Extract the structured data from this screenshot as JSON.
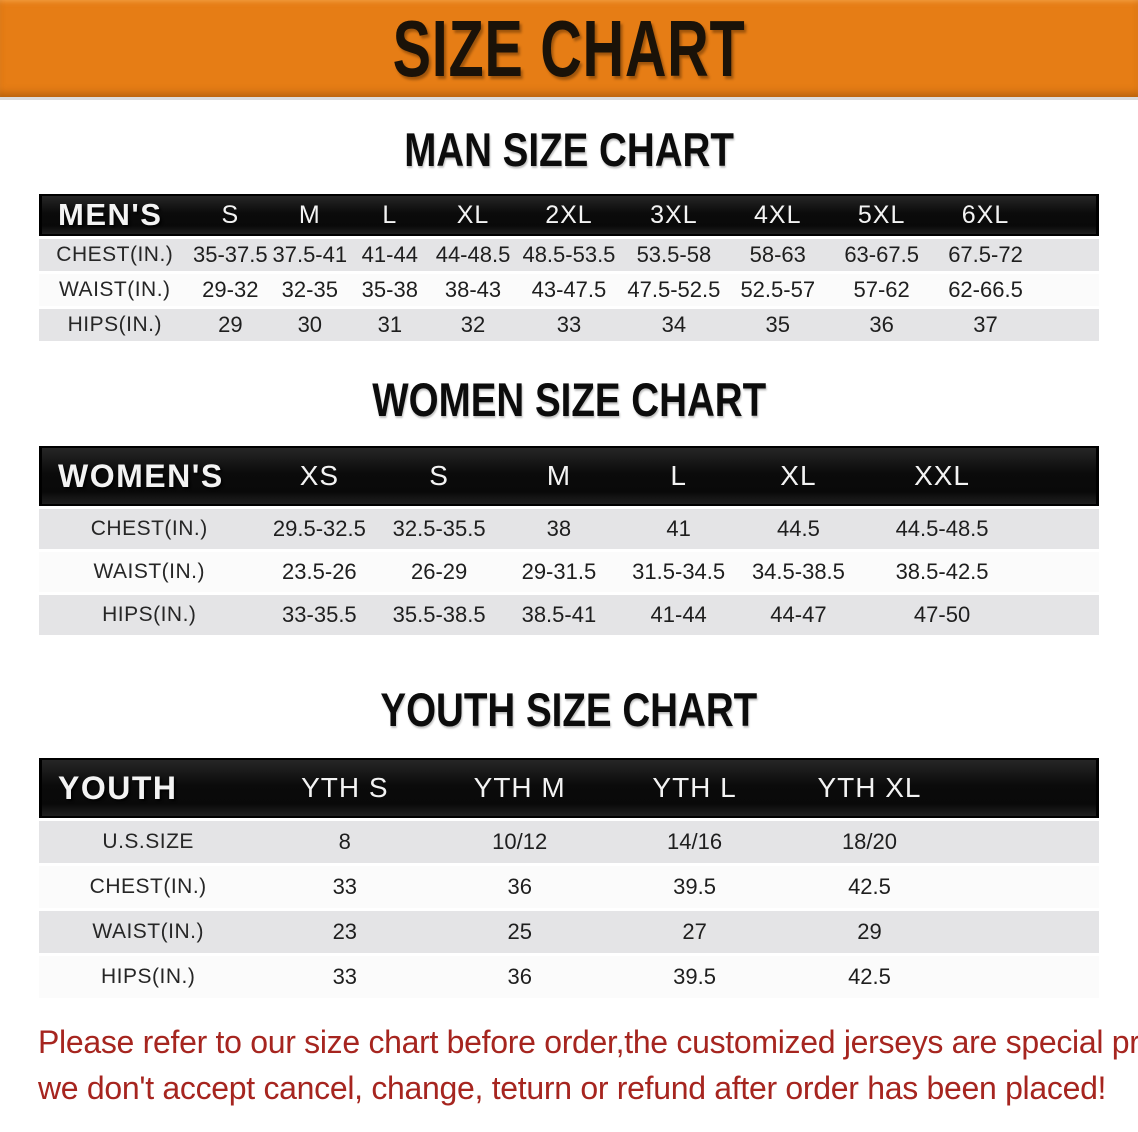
{
  "banner": {
    "title": "SIZE CHART",
    "bg_color": "#e67d15",
    "text_color": "#1a1208"
  },
  "sections": [
    {
      "heading": "MAN SIZE CHART",
      "table": {
        "label": "MEN'S",
        "sizes": [
          "S",
          "M",
          "L",
          "XL",
          "2XL",
          "3XL",
          "4XL",
          "5XL",
          "6XL"
        ],
        "rows": [
          {
            "label": "CHEST(IN.)",
            "values": [
              "35-37.5",
              "37.5-41",
              "41-44",
              "44-48.5",
              "48.5-53.5",
              "53.5-58",
              "58-63",
              "63-67.5",
              "67.5-72"
            ]
          },
          {
            "label": "WAIST(IN.)",
            "values": [
              "29-32",
              "32-35",
              "35-38",
              "38-43",
              "43-47.5",
              "47.5-52.5",
              "52.5-57",
              "57-62",
              "62-66.5"
            ]
          },
          {
            "label": "HIPS(IN.)",
            "values": [
              "29",
              "30",
              "31",
              "32",
              "33",
              "34",
              "35",
              "36",
              "37"
            ]
          }
        ]
      }
    },
    {
      "heading": "WOMEN SIZE CHART",
      "table": {
        "label": "WOMEN'S",
        "sizes": [
          "XS",
          "S",
          "M",
          "L",
          "XL",
          "XXL"
        ],
        "rows": [
          {
            "label": "CHEST(IN.)",
            "values": [
              "29.5-32.5",
              "32.5-35.5",
              "38",
              "41",
              "44.5",
              "44.5-48.5"
            ]
          },
          {
            "label": "WAIST(IN.)",
            "values": [
              "23.5-26",
              "26-29",
              "29-31.5",
              "31.5-34.5",
              "34.5-38.5",
              "38.5-42.5"
            ]
          },
          {
            "label": "HIPS(IN.)",
            "values": [
              "33-35.5",
              "35.5-38.5",
              "38.5-41",
              "41-44",
              "44-47",
              "47-50"
            ]
          }
        ]
      }
    },
    {
      "heading": "YOUTH SIZE CHART",
      "table": {
        "label": "YOUTH",
        "sizes": [
          "YTH S",
          "YTH M",
          "YTH L",
          "YTH XL"
        ],
        "rows": [
          {
            "label": "U.S.SIZE",
            "values": [
              "8",
              "10/12",
              "14/16",
              "18/20"
            ]
          },
          {
            "label": "CHEST(IN.)",
            "values": [
              "33",
              "36",
              "39.5",
              "42.5"
            ]
          },
          {
            "label": "WAIST(IN.)",
            "values": [
              "23",
              "25",
              "27",
              "29"
            ]
          },
          {
            "label": "HIPS(IN.)",
            "values": [
              "33",
              "36",
              "39.5",
              "42.5"
            ]
          }
        ]
      }
    }
  ],
  "disclaimer": {
    "line1": "Please refer to our size chart before order,the customized jerseys are special products,",
    "line2": "we don't accept cancel, change, teturn or refund after order has been placed!",
    "color": "#a6251f"
  }
}
